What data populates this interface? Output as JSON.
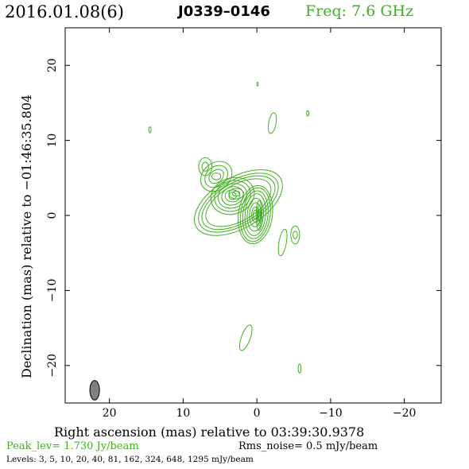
{
  "header": {
    "date": "2016.01.08(6)",
    "source": "J0339–0146",
    "freq": "Freq: 7.6 GHz"
  },
  "footer": {
    "peak": "Peak_lev=  1.730 Jy/beam",
    "rms": "Rms_noise=  0.5 mJy/beam",
    "levels": "Levels:   3,    5,   10,   20,   40,   81,  162,  324,  648,  1295 mJy/beam"
  },
  "colors": {
    "contour": "#3cb01c",
    "beam": "#808080",
    "freq_text": "#3cb01c"
  },
  "chart_data": {
    "type": "contour",
    "xlabel": "Right ascension (mas) relative to 03:39:30.9378",
    "ylabel": "Declination (mas) relative to −01:46:35.804",
    "xlim": [
      26,
      -25
    ],
    "ylim": [
      -25,
      25
    ],
    "xticks": [
      20,
      10,
      0,
      -10,
      -20
    ],
    "xtick_labels": [
      "20",
      "10",
      "0",
      "−10",
      "−20"
    ],
    "yticks": [
      20,
      10,
      0,
      -10,
      -20
    ],
    "ytick_labels": [
      "20",
      "10",
      "0",
      "−10",
      "−20"
    ],
    "levels_mJy": [
      3,
      5,
      10,
      20,
      40,
      81,
      162,
      324,
      648,
      1295
    ],
    "peak_Jy_per_beam": 1.73,
    "rms_mJy_per_beam": 0.5,
    "beam": {
      "x": 22,
      "y": -23.3,
      "major_mas": 2.6,
      "minor_mas": 1.3,
      "pa_deg": 0
    },
    "components": [
      {
        "name": "core",
        "x": 0.2,
        "y": 0.1,
        "rings": [
          {
            "rx": 2.3,
            "ry": 3.9,
            "rot": 8
          },
          {
            "rx": 2.0,
            "ry": 3.6,
            "rot": 8
          },
          {
            "rx": 1.7,
            "ry": 3.2,
            "rot": 6
          },
          {
            "rx": 1.4,
            "ry": 2.8,
            "rot": 5
          },
          {
            "rx": 1.1,
            "ry": 2.2,
            "rot": 4
          },
          {
            "rx": 0.8,
            "ry": 1.6,
            "rot": 3
          },
          {
            "rx": 0.5,
            "ry": 1.0,
            "rot": 0
          },
          {
            "rx": 0.3,
            "ry": 0.6,
            "rot": 0
          }
        ]
      },
      {
        "name": "core-edge",
        "x": -0.3,
        "y": 0.0,
        "rings": [
          {
            "rx": 0.4,
            "ry": 2.0,
            "rot": 0
          },
          {
            "rx": 0.25,
            "ry": 1.4,
            "rot": 0
          },
          {
            "rx": 0.15,
            "ry": 0.8,
            "rot": 0
          }
        ]
      },
      {
        "name": "envelope",
        "x": 2.5,
        "y": 1.7,
        "rings": [
          {
            "rx": 6.6,
            "ry": 3.4,
            "rot": -30
          },
          {
            "rx": 6.0,
            "ry": 3.0,
            "rot": -30
          },
          {
            "rx": 5.5,
            "ry": 2.7,
            "rot": -30
          },
          {
            "rx": 4.9,
            "ry": 2.4,
            "rot": -30
          }
        ]
      },
      {
        "name": "jet-mid",
        "x": 3.3,
        "y": 2.6,
        "rings": [
          {
            "rx": 3.0,
            "ry": 2.4,
            "rot": -20
          },
          {
            "rx": 2.5,
            "ry": 2.0,
            "rot": -20
          },
          {
            "rx": 2.0,
            "ry": 1.6,
            "rot": -20
          },
          {
            "rx": 1.5,
            "ry": 1.2,
            "rot": -20
          },
          {
            "rx": 1.0,
            "ry": 0.8,
            "rot": 0
          },
          {
            "rx": 0.5,
            "ry": 0.5,
            "rot": 0
          }
        ]
      },
      {
        "name": "jet-outer",
        "x": 5.5,
        "y": 5.2,
        "rings": [
          {
            "rx": 2.3,
            "ry": 1.8,
            "rot": -40
          },
          {
            "rx": 1.7,
            "ry": 1.3,
            "rot": -40
          },
          {
            "rx": 1.1,
            "ry": 0.8,
            "rot": -40
          },
          {
            "rx": 0.6,
            "ry": 0.45,
            "rot": 0
          }
        ]
      },
      {
        "name": "jet-tip",
        "x": 7.0,
        "y": 6.5,
        "rings": [
          {
            "rx": 0.9,
            "ry": 1.2,
            "rot": 0
          },
          {
            "rx": 0.45,
            "ry": 0.6,
            "rot": 0
          }
        ]
      },
      {
        "name": "east-blob",
        "x": 2.8,
        "y": 2.9,
        "rings": [
          {
            "rx": 1.0,
            "ry": 0.7,
            "rot": 0
          },
          {
            "rx": 0.5,
            "ry": 0.35,
            "rot": 0
          }
        ]
      },
      {
        "name": "west-blob",
        "x": -5.2,
        "y": -2.6,
        "rings": [
          {
            "rx": 0.6,
            "ry": 1.2,
            "rot": 0
          },
          {
            "rx": 0.3,
            "ry": 0.5,
            "rot": 0
          }
        ]
      },
      {
        "name": "feature-a",
        "x": -3.5,
        "y": -3.6,
        "rings": [
          {
            "rx": 0.5,
            "ry": 1.8,
            "rot": 10
          }
        ]
      },
      {
        "name": "feature-b",
        "x": -2.1,
        "y": 12.3,
        "rings": [
          {
            "rx": 0.5,
            "ry": 1.4,
            "rot": 10
          }
        ]
      },
      {
        "name": "feature-c",
        "x": 1.5,
        "y": -16.3,
        "rings": [
          {
            "rx": 0.6,
            "ry": 1.8,
            "rot": 20
          }
        ]
      },
      {
        "name": "noise-1",
        "x": 14.5,
        "y": 11.4,
        "rings": [
          {
            "rx": 0.15,
            "ry": 0.4,
            "rot": 0
          }
        ]
      },
      {
        "name": "noise-2",
        "x": -0.1,
        "y": 17.5,
        "rings": [
          {
            "rx": 0.1,
            "ry": 0.25,
            "rot": 0
          }
        ]
      },
      {
        "name": "noise-3",
        "x": -6.9,
        "y": 13.6,
        "rings": [
          {
            "rx": 0.15,
            "ry": 0.35,
            "rot": 0
          }
        ]
      },
      {
        "name": "noise-4",
        "x": -5.8,
        "y": -20.4,
        "rings": [
          {
            "rx": 0.2,
            "ry": 0.6,
            "rot": 0
          }
        ]
      }
    ]
  }
}
